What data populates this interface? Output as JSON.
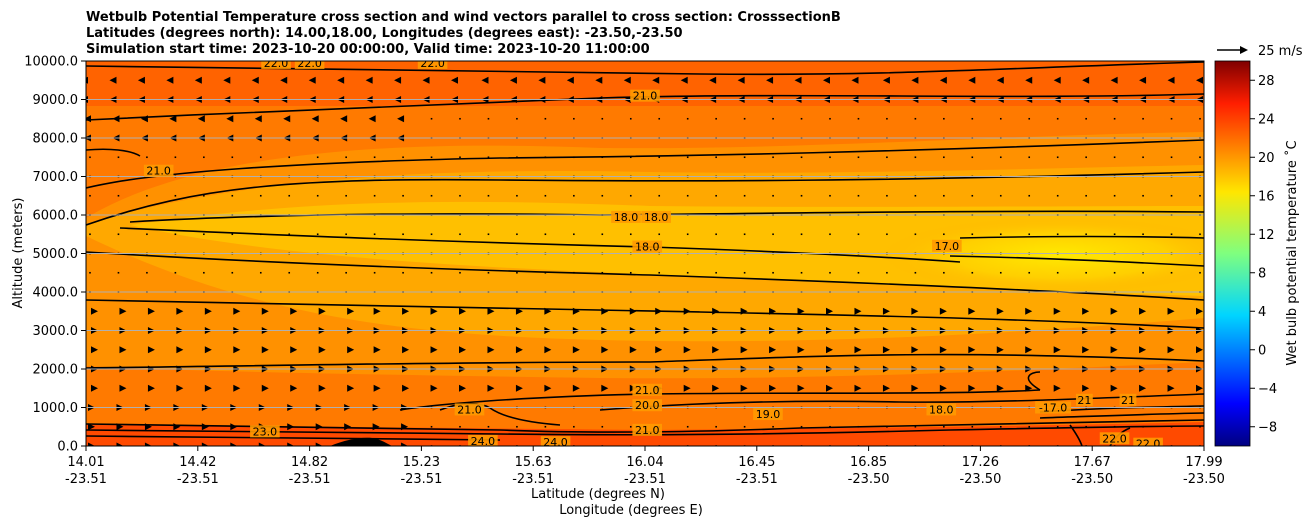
{
  "chart_data": {
    "type": "contour",
    "title_lines": [
      "Wetbulb Potential Temperature cross section and wind vectors parallel to cross section: CrosssectionB",
      "Latitudes (degrees north): 14.00,18.00, Longitudes (degrees east): -23.50,-23.50",
      "Simulation start time: 2023-10-20 00:00:00, Valid time: 2023-10-20 11:00:00"
    ],
    "ylabel": "Altitude (meters)",
    "xlabel": "Latitude (degrees N)",
    "xlabel2": "Longitude (degrees E)",
    "ylim": [
      0,
      10000
    ],
    "yticks": [
      "0.0",
      "1000.0",
      "2000.0",
      "3000.0",
      "4000.0",
      "5000.0",
      "6000.0",
      "7000.0",
      "8000.0",
      "9000.0",
      "10000.0"
    ],
    "x_ticks": [
      {
        "lat": "14.01",
        "lon": "-23.51"
      },
      {
        "lat": "14.42",
        "lon": "-23.51"
      },
      {
        "lat": "14.82",
        "lon": "-23.51"
      },
      {
        "lat": "15.23",
        "lon": "-23.51"
      },
      {
        "lat": "15.63",
        "lon": "-23.51"
      },
      {
        "lat": "16.04",
        "lon": "-23.51"
      },
      {
        "lat": "16.45",
        "lon": "-23.51"
      },
      {
        "lat": "16.85",
        "lon": "-23.50"
      },
      {
        "lat": "17.26",
        "lon": "-23.50"
      },
      {
        "lat": "17.67",
        "lon": "-23.50"
      },
      {
        "lat": "17.99",
        "lon": "-23.50"
      }
    ],
    "colorbar": {
      "label": "Wet bulb potential temperature ˚C",
      "range": [
        -10,
        30
      ],
      "ticks": [
        "−8",
        "−4",
        "0",
        "4",
        "8",
        "12",
        "16",
        "20",
        "24",
        "28"
      ]
    },
    "wind_key": {
      "label": "25 m/s"
    },
    "contour_labels": [
      {
        "text": "22.0",
        "x": 0.17,
        "alt": 9950
      },
      {
        "text": "22.0",
        "x": 0.2,
        "alt": 9950
      },
      {
        "text": "22.0",
        "x": 0.31,
        "alt": 9950
      },
      {
        "text": "21.0",
        "x": 0.5,
        "alt": 9100
      },
      {
        "text": "21.0",
        "x": 0.065,
        "alt": 7150
      },
      {
        "text": "18.0",
        "x": 0.483,
        "alt": 5950
      },
      {
        "text": "18.0",
        "x": 0.51,
        "alt": 5950
      },
      {
        "text": "18.0",
        "x": 0.502,
        "alt": 5180
      },
      {
        "text": "17.0",
        "x": 0.77,
        "alt": 5200
      },
      {
        "text": "21.0",
        "x": 0.502,
        "alt": 1460
      },
      {
        "text": "20.0",
        "x": 0.502,
        "alt": 1060
      },
      {
        "text": "21.0",
        "x": 0.343,
        "alt": 950
      },
      {
        "text": "23.0",
        "x": 0.16,
        "alt": 380
      },
      {
        "text": "24.0",
        "x": 0.355,
        "alt": 130
      },
      {
        "text": "24.0",
        "x": 0.42,
        "alt": 100
      },
      {
        "text": "21.0",
        "x": 0.502,
        "alt": 420
      },
      {
        "text": "19.0",
        "x": 0.61,
        "alt": 830
      },
      {
        "text": "18.0",
        "x": 0.765,
        "alt": 950
      },
      {
        "text": "-17.0",
        "x": 0.865,
        "alt": 1000
      },
      {
        "text": "21",
        "x": 0.893,
        "alt": 1200
      },
      {
        "text": "21",
        "x": 0.932,
        "alt": 1200
      },
      {
        "text": "22.0",
        "x": 0.92,
        "alt": 200
      },
      {
        "text": "22.0",
        "x": 0.95,
        "alt": 60
      }
    ],
    "field_description": "Wet-bulb potential temperature roughly 23-24 C near surface and above 9000 m, minimum about 16-17 C near 5000-5500 m on the north side; contour interval 1 C."
  }
}
